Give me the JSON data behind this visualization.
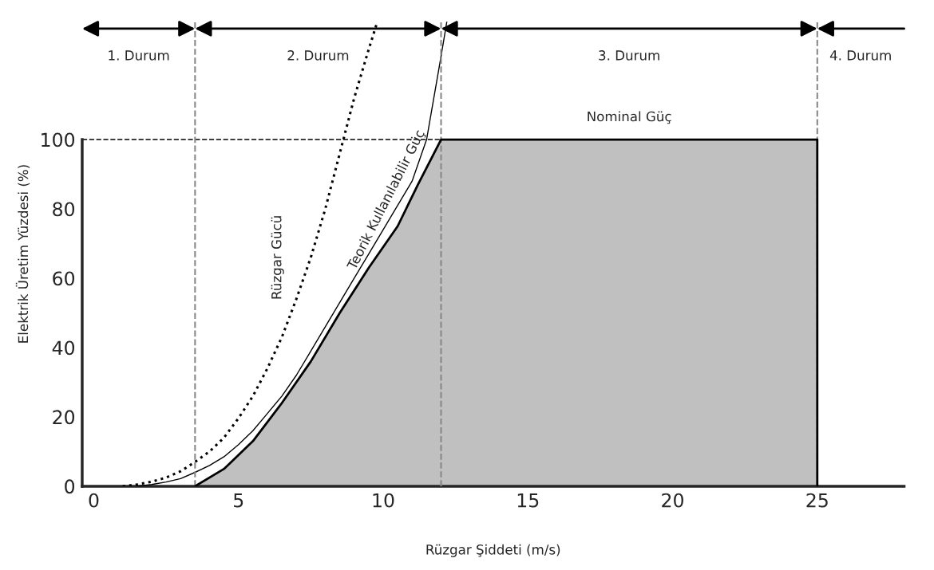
{
  "chart_data": {
    "type": "line",
    "xlabel": "Rüzgar Şiddeti (m/s)",
    "ylabel": "Elektrik Üretim Yüzdesi (%)",
    "xlim": [
      -0.4,
      28
    ],
    "ylim": [
      0,
      134
    ],
    "xticks": [
      0,
      5,
      10,
      15,
      20,
      25
    ],
    "yticks": [
      0,
      20,
      40,
      60,
      80,
      100
    ],
    "grid": false,
    "legend": false,
    "series": [
      {
        "name": "Rüzgar Gücü",
        "line_style": "dotted",
        "color": "#000000",
        "x": [
          1,
          1.5,
          2,
          2.5,
          3,
          3.5,
          4,
          4.5,
          5,
          5.5,
          6,
          6.5,
          7,
          7.5,
          8,
          8.5,
          9,
          9.5,
          9.8
        ],
        "values": [
          0,
          0.5,
          1.3,
          2.5,
          4.3,
          7,
          10,
          14,
          19.6,
          26,
          34,
          43,
          54,
          66,
          80,
          96,
          112,
          126,
          134
        ]
      },
      {
        "name": "Teorik Kullanılabilir Güç",
        "line_style": "solid",
        "color": "#000000",
        "x": [
          1.5,
          2,
          2.5,
          3,
          3.5,
          4,
          4.5,
          5,
          5.5,
          6,
          6.5,
          7,
          7.5,
          8,
          8.5,
          9,
          9.5,
          10,
          10.5,
          11,
          11.5,
          12,
          12.2
        ],
        "values": [
          0,
          0.5,
          1.2,
          2.2,
          4,
          6,
          8.5,
          12,
          16,
          21,
          26,
          32,
          39,
          46,
          53,
          60,
          67,
          74,
          81,
          88,
          100,
          124,
          134
        ]
      },
      {
        "name": "Nominal Güç",
        "type": "area",
        "color": "#c0c0c0",
        "x": [
          3.5,
          4.5,
          5.5,
          6.5,
          7.5,
          8.5,
          9.5,
          10.5,
          11.2,
          12,
          25,
          25
        ],
        "values": [
          0,
          5,
          13,
          24,
          36,
          50,
          63,
          75,
          87,
          100,
          100,
          0
        ]
      }
    ],
    "ref_lines": [
      {
        "axis": "x",
        "value": 3.5,
        "color": "#888888",
        "line_style": "dashed"
      },
      {
        "axis": "x",
        "value": 12,
        "color": "#888888",
        "line_style": "dashed"
      },
      {
        "axis": "x",
        "value": 25,
        "color": "#888888",
        "line_style": "dashed"
      },
      {
        "axis": "y",
        "value": 100,
        "color": "#000000",
        "line_style": "dashed"
      }
    ],
    "annotations": [
      "1. Durum",
      "2. Durum",
      "3. Durum",
      "4. Durum"
    ]
  }
}
